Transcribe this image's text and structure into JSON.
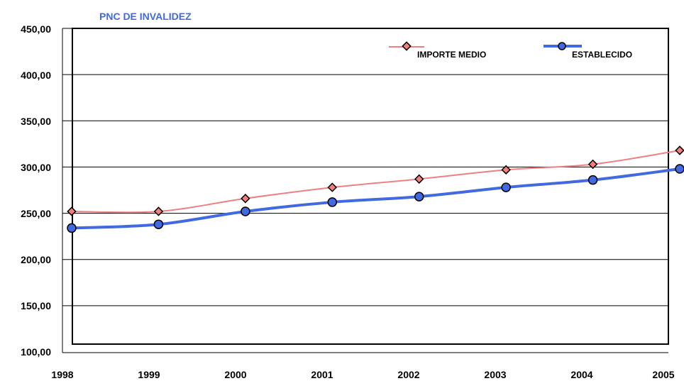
{
  "chart_data": {
    "type": "line",
    "title": "PNC DE INVALIDEZ",
    "x": [
      "1998",
      "1999",
      "2000",
      "2001",
      "2002",
      "2003",
      "2004",
      "2005"
    ],
    "ylim": [
      100,
      450
    ],
    "yticks": [
      "100,00",
      "150,00",
      "200,00",
      "250,00",
      "300,00",
      "350,00",
      "400,00",
      "450,00"
    ],
    "grid": true,
    "legend_position": "top-right",
    "series": [
      {
        "name": "IMPORTE MEDIO",
        "color": "#f08080",
        "marker": "diamond",
        "values": [
          252,
          252,
          266,
          278,
          287,
          297,
          303,
          318
        ]
      },
      {
        "name": "ESTABLECIDO",
        "color": "#4169e1",
        "marker": "circle",
        "values": [
          234,
          238,
          252,
          262,
          268,
          278,
          286,
          298
        ]
      }
    ]
  }
}
